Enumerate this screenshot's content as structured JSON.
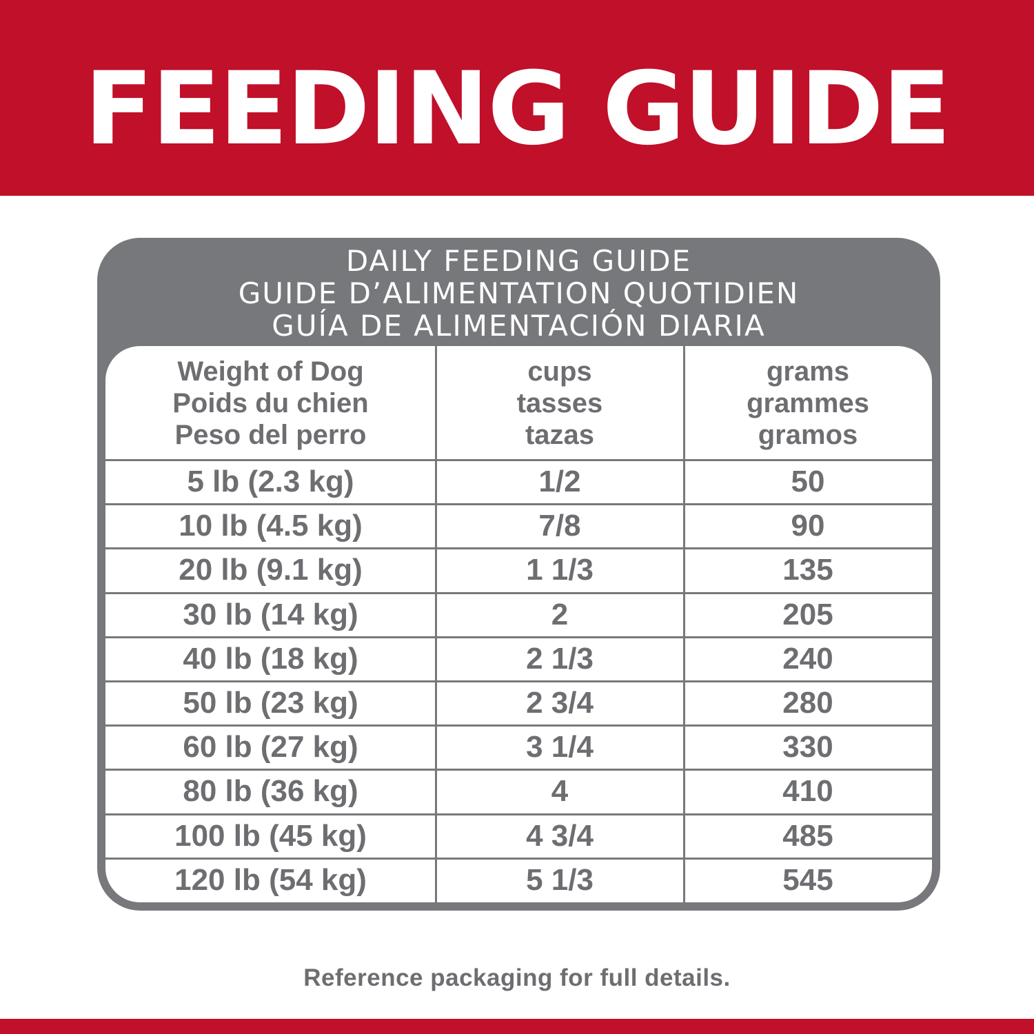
{
  "banner": {
    "title": "FEEDING GUIDE"
  },
  "panel": {
    "title_en": "DAILY FEEDING GUIDE",
    "title_fr": "GUIDE D’ALIMENTATION QUOTIDIEN",
    "title_es": "GUÍA DE ALIMENTACIÓN DIARIA"
  },
  "table": {
    "headers": [
      {
        "en": "Weight of Dog",
        "fr": "Poids du chien",
        "es": "Peso del perro"
      },
      {
        "en": "cups",
        "fr": "tasses",
        "es": "tazas"
      },
      {
        "en": "grams",
        "fr": "grammes",
        "es": "gramos"
      }
    ],
    "rows": [
      {
        "weight": "5 lb (2.3 kg)",
        "cups": "1/2",
        "grams": "50"
      },
      {
        "weight": "10 lb (4.5 kg)",
        "cups": "7/8",
        "grams": "90"
      },
      {
        "weight": "20 lb (9.1 kg)",
        "cups": "1 1/3",
        "grams": "135"
      },
      {
        "weight": "30 lb (14 kg)",
        "cups": "2",
        "grams": "205"
      },
      {
        "weight": "40 lb (18 kg)",
        "cups": "2 1/3",
        "grams": "240"
      },
      {
        "weight": "50 lb (23 kg)",
        "cups": "2 3/4",
        "grams": "280"
      },
      {
        "weight": "60 lb (27 kg)",
        "cups": "3 1/4",
        "grams": "330"
      },
      {
        "weight": "80 lb (36 kg)",
        "cups": "4",
        "grams": "410"
      },
      {
        "weight": "100 lb (45 kg)",
        "cups": "4 3/4",
        "grams": "485"
      },
      {
        "weight": "120 lb (54 kg)",
        "cups": "5 1/3",
        "grams": "545"
      }
    ]
  },
  "footer": {
    "note": "Reference packaging for full details."
  },
  "colors": {
    "brand_red": "#c0102a",
    "panel_gray": "#77787b",
    "text_gray": "#6d6e71"
  }
}
